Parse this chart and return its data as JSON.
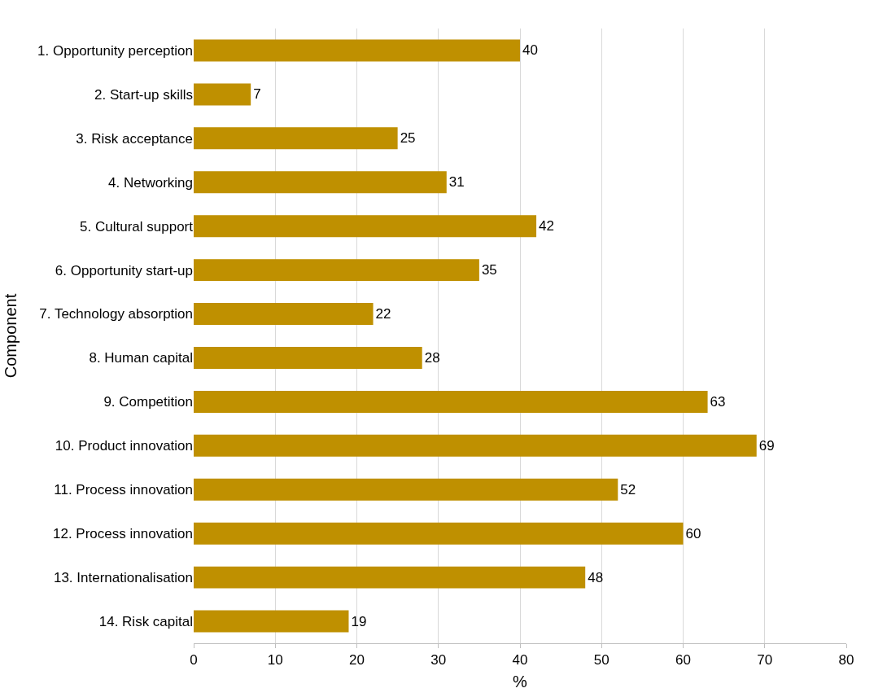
{
  "chart_data": {
    "type": "bar",
    "orientation": "horizontal",
    "xlabel": "%",
    "ylabel": "Component",
    "categories": [
      "1. Opportunity perception",
      "2. Start-up skills",
      "3. Risk acceptance",
      "4. Networking",
      "5. Cultural support",
      "6. Opportunity start-up",
      "7. Technology absorption",
      "8. Human capital",
      "9. Competition",
      "10. Product innovation",
      "11. Process innovation",
      "12. Process innovation",
      "13. Internationalisation",
      "14. Risk capital"
    ],
    "values": [
      40,
      7,
      25,
      31,
      42,
      35,
      22,
      28,
      63,
      69,
      52,
      60,
      48,
      19
    ],
    "color": "#bf9000",
    "data_labels": true,
    "xlim": [
      0,
      80
    ],
    "xticks": [
      0,
      10,
      20,
      30,
      40,
      50,
      60,
      70,
      80
    ],
    "grid": "x",
    "legend": false
  }
}
